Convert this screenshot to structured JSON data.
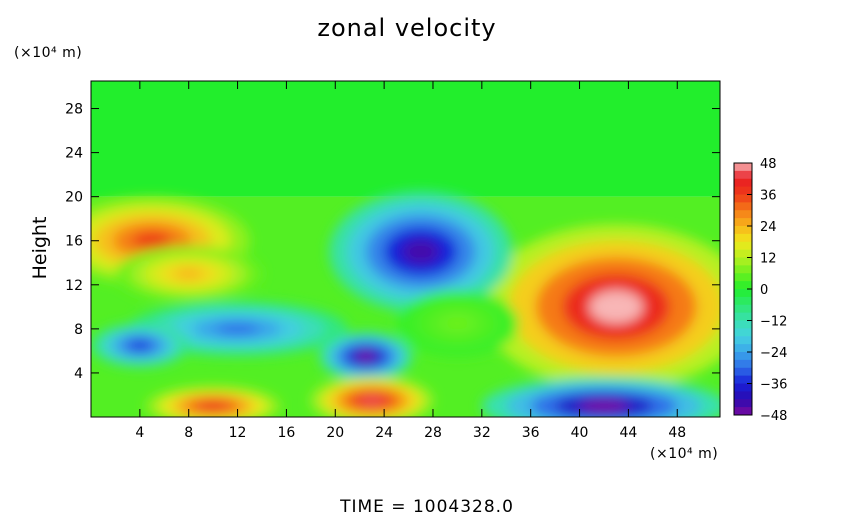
{
  "chart_data": {
    "type": "heatmap",
    "title": "zonal velocity",
    "ylabel": "Height",
    "xlabel": "",
    "x_unit": "(×10⁴ m)",
    "y_unit": "(×10⁴ m)",
    "xlim": [
      0,
      51.5
    ],
    "ylim": [
      0,
      30.5
    ],
    "x_ticks": [
      4,
      8,
      12,
      16,
      20,
      24,
      28,
      32,
      36,
      40,
      44,
      48
    ],
    "y_ticks": [
      4,
      8,
      12,
      16,
      20,
      24,
      28
    ],
    "colorbar": {
      "min": -48,
      "max": 48,
      "ticks": [
        48,
        36,
        24,
        12,
        0,
        -12,
        -24,
        -36,
        -48
      ]
    },
    "background_value_above_20": 0,
    "features": [
      {
        "name": "positive jet lower right",
        "x": 43,
        "y": 10,
        "peak": 48
      },
      {
        "name": "negative core upper middle",
        "x": 27,
        "y": 15,
        "peak": -44
      },
      {
        "name": "negative core near surface right",
        "x": 42,
        "y": 1,
        "peak": -48
      },
      {
        "name": "negative core mid",
        "x": 22.5,
        "y": 5.5,
        "peak": -48
      },
      {
        "name": "positive surface left",
        "x": 10,
        "y": 1,
        "peak": 40
      },
      {
        "name": "positive surface middle",
        "x": 23,
        "y": 1.5,
        "peak": 44
      },
      {
        "name": "positive upper left",
        "x": 5,
        "y": 16,
        "peak": 36
      }
    ],
    "footer": "TIME  =  1004328.0"
  }
}
